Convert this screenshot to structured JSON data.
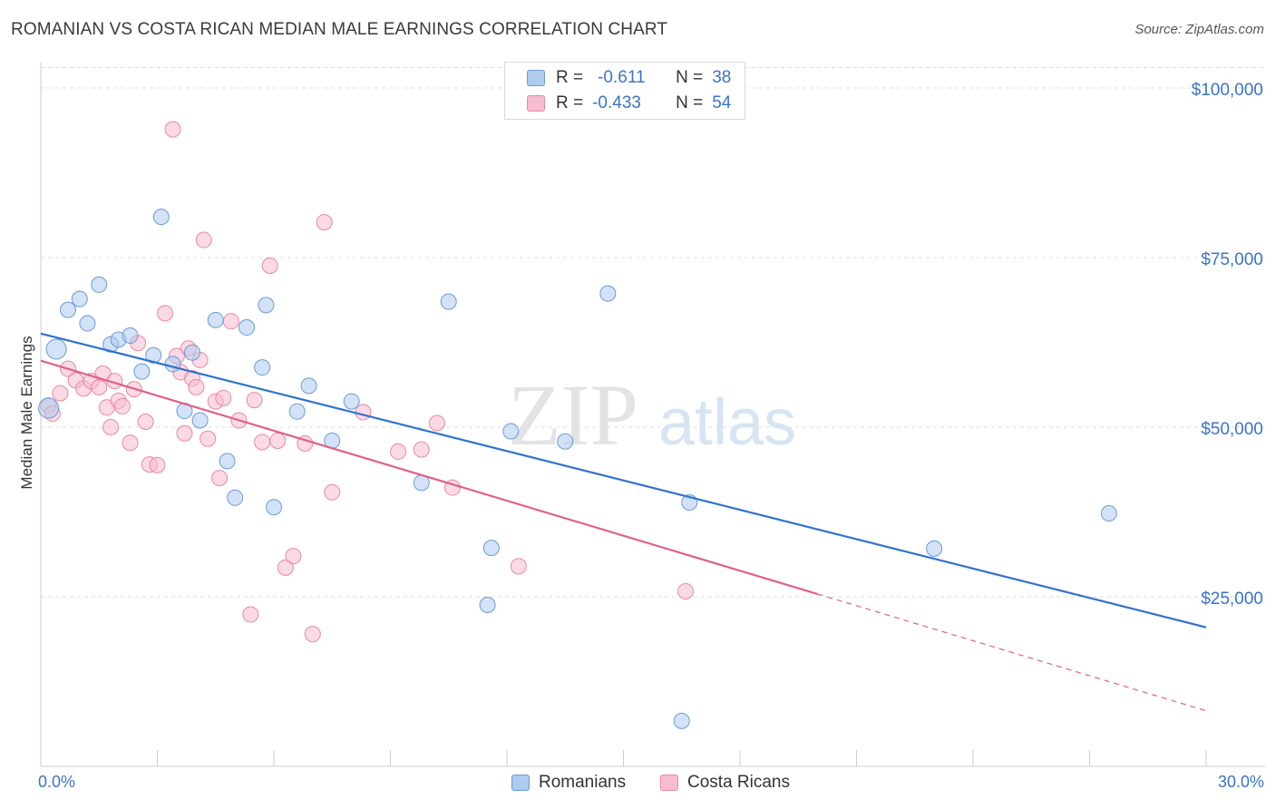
{
  "header": {
    "title": "ROMANIAN VS COSTA RICAN MEDIAN MALE EARNINGS CORRELATION CHART",
    "source": "Source: ZipAtlas.com"
  },
  "watermark": {
    "zip": "ZIP",
    "atlas": "atlas"
  },
  "legend_top": {
    "rows": [
      {
        "r_label": "R =",
        "r_value": "-0.611",
        "n_label": "N =",
        "n_value": "38"
      },
      {
        "r_label": "R =",
        "r_value": "-0.433",
        "n_label": "N =",
        "n_value": "54"
      }
    ]
  },
  "colors": {
    "romanians_fill": "#aecbf0",
    "romanians_stroke": "#6b9bd6",
    "romanians_line": "#2f72d0",
    "costa_fill": "#f7bcd0",
    "costa_stroke": "#e8899f",
    "costa_line": "#e0608a",
    "axis_label": "#3a74c8",
    "grid": "#dddddd"
  },
  "chart_data": {
    "type": "scatter",
    "title": "ROMANIAN VS COSTA RICAN MEDIAN MALE EARNINGS CORRELATION CHART",
    "xlabel": "",
    "ylabel": "Median Male Earnings",
    "xlim": [
      0,
      30
    ],
    "ylim": [
      0,
      105000
    ],
    "x_tick_labels": [
      "0.0%",
      "30.0%"
    ],
    "y_ticks": [
      25000,
      50000,
      75000,
      100000
    ],
    "y_tick_labels": [
      "$25,000",
      "$50,000",
      "$75,000",
      "$100,000"
    ],
    "grid": true,
    "legend_position": "bottom",
    "series": [
      {
        "name": "Romanians",
        "r": -0.611,
        "n": 38,
        "trend": {
          "x0": 0,
          "y0": 63800,
          "x1": 30,
          "y1": 20500
        },
        "points": [
          [
            0.4,
            61500
          ],
          [
            0.7,
            67300
          ],
          [
            1.0,
            68900
          ],
          [
            1.2,
            65300
          ],
          [
            1.5,
            71000
          ],
          [
            1.8,
            62200
          ],
          [
            2.0,
            62900
          ],
          [
            2.3,
            63500
          ],
          [
            2.6,
            58200
          ],
          [
            2.9,
            60600
          ],
          [
            3.1,
            81000
          ],
          [
            3.4,
            59300
          ],
          [
            3.7,
            52400
          ],
          [
            3.9,
            61000
          ],
          [
            4.1,
            51000
          ],
          [
            4.5,
            65800
          ],
          [
            4.8,
            45000
          ],
          [
            5.0,
            39600
          ],
          [
            5.3,
            64700
          ],
          [
            5.7,
            58800
          ],
          [
            5.8,
            68000
          ],
          [
            6.0,
            38200
          ],
          [
            6.6,
            52300
          ],
          [
            6.9,
            56100
          ],
          [
            7.5,
            48000
          ],
          [
            8.0,
            53800
          ],
          [
            9.8,
            41800
          ],
          [
            10.5,
            68500
          ],
          [
            11.5,
            23800
          ],
          [
            11.6,
            32200
          ],
          [
            12.1,
            49400
          ],
          [
            13.5,
            47900
          ],
          [
            14.6,
            69700
          ],
          [
            16.5,
            6700
          ],
          [
            16.7,
            38900
          ],
          [
            23.0,
            32100
          ],
          [
            27.5,
            37300
          ],
          [
            0.2,
            52800
          ]
        ]
      },
      {
        "name": "Costa Ricans",
        "r": -0.433,
        "n": 54,
        "trend_solid": {
          "x0": 0,
          "y0": 59800,
          "x1": 20.0,
          "y1": 25400
        },
        "trend_dashed": {
          "x0": 20.0,
          "y0": 25400,
          "x1": 30,
          "y1": 8200
        },
        "points": [
          [
            0.2,
            53200
          ],
          [
            0.5,
            55000
          ],
          [
            0.7,
            58600
          ],
          [
            0.9,
            56900
          ],
          [
            1.1,
            55700
          ],
          [
            1.3,
            56800
          ],
          [
            1.5,
            55900
          ],
          [
            1.6,
            57900
          ],
          [
            1.7,
            52900
          ],
          [
            1.9,
            56800
          ],
          [
            2.0,
            53900
          ],
          [
            2.1,
            53100
          ],
          [
            2.3,
            47700
          ],
          [
            2.5,
            62400
          ],
          [
            2.7,
            50800
          ],
          [
            2.8,
            44500
          ],
          [
            3.0,
            44400
          ],
          [
            3.2,
            66800
          ],
          [
            3.4,
            93900
          ],
          [
            3.6,
            58100
          ],
          [
            3.7,
            49100
          ],
          [
            3.8,
            61600
          ],
          [
            3.9,
            57200
          ],
          [
            4.0,
            55900
          ],
          [
            4.1,
            59900
          ],
          [
            4.2,
            77600
          ],
          [
            4.3,
            48300
          ],
          [
            4.5,
            53800
          ],
          [
            4.6,
            42500
          ],
          [
            4.7,
            54300
          ],
          [
            4.9,
            65600
          ],
          [
            5.1,
            51000
          ],
          [
            5.4,
            22400
          ],
          [
            5.5,
            54000
          ],
          [
            5.7,
            47800
          ],
          [
            5.9,
            73800
          ],
          [
            6.1,
            48000
          ],
          [
            6.3,
            29300
          ],
          [
            6.5,
            31000
          ],
          [
            6.8,
            47600
          ],
          [
            7.0,
            19500
          ],
          [
            7.3,
            80200
          ],
          [
            7.5,
            40400
          ],
          [
            8.3,
            52200
          ],
          [
            9.2,
            46400
          ],
          [
            9.8,
            46700
          ],
          [
            10.2,
            50600
          ],
          [
            10.6,
            41100
          ],
          [
            12.3,
            29500
          ],
          [
            16.6,
            25800
          ],
          [
            2.4,
            55600
          ],
          [
            3.5,
            60500
          ],
          [
            1.8,
            50000
          ],
          [
            0.3,
            52000
          ]
        ]
      }
    ]
  },
  "bottom_legend": {
    "romanians": "Romanians",
    "costa_ricans": "Costa Ricans"
  }
}
